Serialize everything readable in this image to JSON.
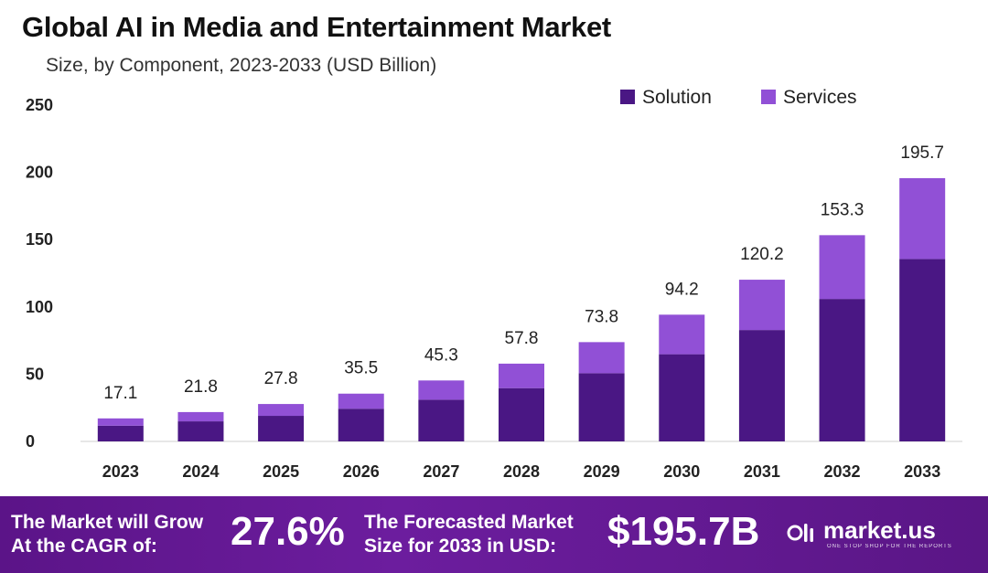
{
  "title": "Global AI in Media and Entertainment Market",
  "subtitle": "Size, by Component, 2023-2033 (USD Billion)",
  "colors": {
    "solution": "#4a1784",
    "services": "#9150d6",
    "footer": "#5b1488"
  },
  "chart_data": {
    "type": "bar",
    "stacked": true,
    "categories": [
      "2023",
      "2024",
      "2025",
      "2026",
      "2027",
      "2028",
      "2029",
      "2030",
      "2031",
      "2032",
      "2033"
    ],
    "series": [
      {
        "name": "Solution",
        "values": [
          11.7,
          14.9,
          19.0,
          24.3,
          31.0,
          39.6,
          50.7,
          64.8,
          82.8,
          105.9,
          135.6
        ]
      },
      {
        "name": "Services",
        "values": [
          5.4,
          6.9,
          8.8,
          11.2,
          14.3,
          18.2,
          23.1,
          29.4,
          37.4,
          47.4,
          60.1
        ]
      }
    ],
    "totals": [
      "17.1",
      "21.8",
      "27.8",
      "35.5",
      "45.3",
      "57.8",
      "73.8",
      "94.2",
      "120.2",
      "153.3",
      "195.7"
    ],
    "yticks": [
      "0",
      "50",
      "100",
      "150",
      "200",
      "250"
    ],
    "ylim": [
      0,
      250
    ],
    "legend_position": "top-right",
    "grid": false
  },
  "footer": {
    "cagr_label_line1": "The Market will Grow",
    "cagr_label_line2": "At the CAGR of:",
    "cagr_value": "27.6%",
    "forecast_label_line1": "The Forecasted Market",
    "forecast_label_line2": "Size for 2033 in USD:",
    "forecast_value": "$195.7B",
    "brand_name": "market.us",
    "brand_tagline": "ONE STOP SHOP FOR THE REPORTS",
    "brand_icon": "market-us-logo-icon"
  }
}
